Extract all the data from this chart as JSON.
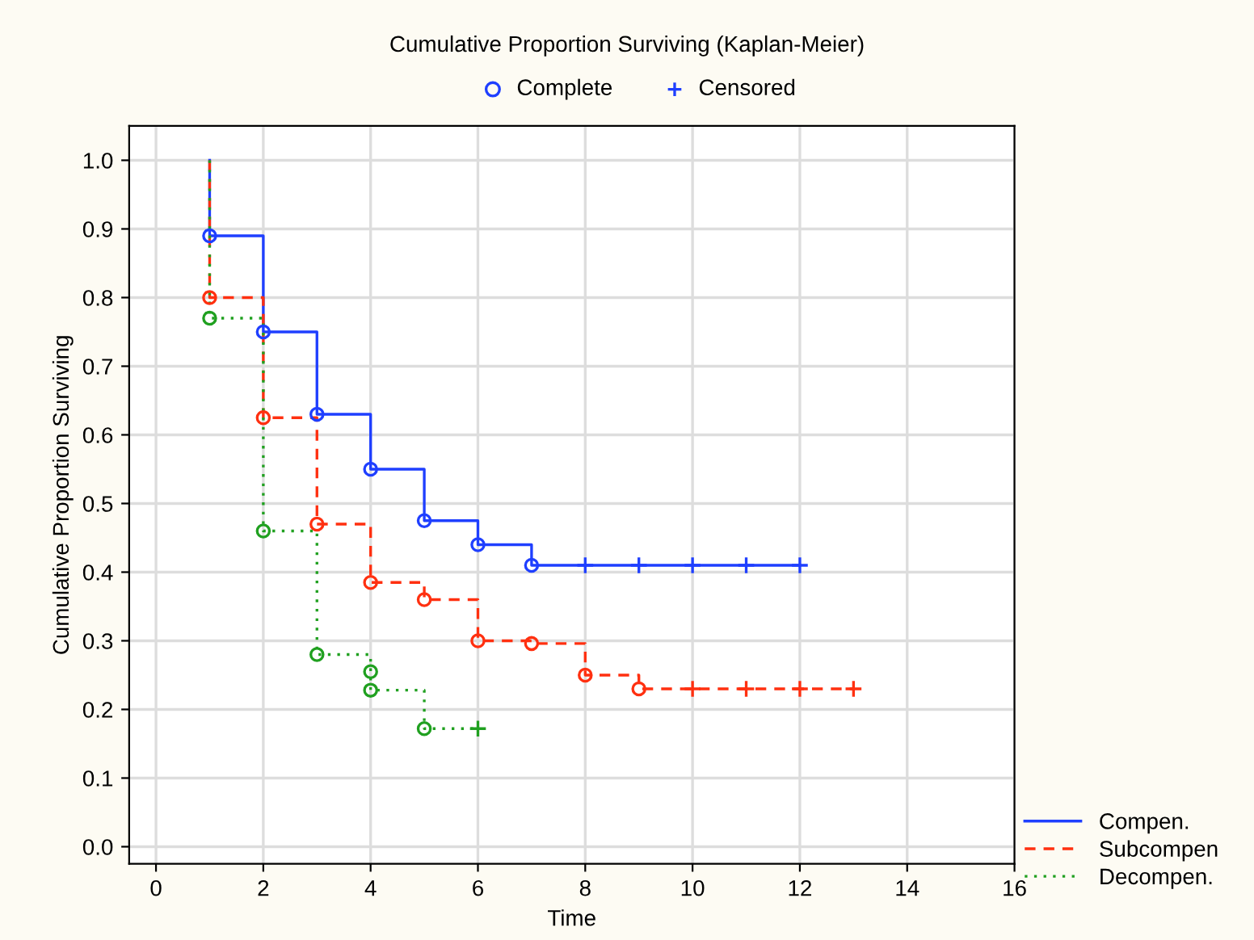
{
  "chart_data": {
    "type": "step",
    "title": "Cumulative Proportion Surviving (Kaplan-Meier)",
    "xlabel": "Time",
    "ylabel": "Cumulative Proportion Surviving",
    "xlim": [
      -0.5,
      16
    ],
    "xticks": [
      0,
      2,
      4,
      6,
      8,
      10,
      12,
      14,
      16
    ],
    "ylim": [
      -0.025,
      1.05
    ],
    "yticks": [
      {
        "value": 0,
        "label": "0.0"
      },
      0.1,
      0.2,
      0.3,
      0.4,
      0.5,
      0.6,
      0.7,
      0.8,
      0.9,
      {
        "value": 1,
        "label": "1.0"
      }
    ],
    "grid": true,
    "legend": "bottom right",
    "annotations": [
      "Complete",
      "Censored"
    ],
    "series": [
      {
        "name": "Compen.",
        "color": "#1f3fff",
        "line_style": "solid",
        "x": [
          1,
          1,
          2,
          3,
          4,
          5,
          6,
          7,
          12
        ],
        "values": [
          1.0,
          0.89,
          0.75,
          0.63,
          0.55,
          0.475,
          0.44,
          0.41,
          0.41
        ]
      },
      {
        "name": "Subcompen",
        "color": "#ff3010",
        "line_style": "dashed",
        "x": [
          1,
          1,
          2,
          3,
          4,
          5,
          6,
          7,
          8,
          9,
          13
        ],
        "values": [
          1.0,
          0.8,
          0.625,
          0.47,
          0.385,
          0.36,
          0.3,
          0.296,
          0.25,
          0.23,
          0.23
        ]
      },
      {
        "name": "Decompen.",
        "color": "#20a020",
        "line_style": "dotted",
        "x": [
          1,
          1,
          2,
          3,
          4,
          4,
          5,
          6
        ],
        "values": [
          1.0,
          0.77,
          0.46,
          0.28,
          0.255,
          0.228,
          0.172,
          0.172
        ]
      },
      {
        "type": "scatter",
        "marker": "circle",
        "color": "#1f3fff",
        "x": [
          1,
          2,
          3,
          4,
          5,
          6,
          7
        ],
        "values": [
          0.89,
          0.75,
          0.63,
          0.55,
          0.475,
          0.44,
          0.41
        ]
      },
      {
        "type": "scatter",
        "marker": "cross",
        "color": "#1f3fff",
        "x": [
          8,
          9,
          10,
          11,
          12
        ],
        "values": [
          0.41,
          0.41,
          0.41,
          0.41,
          0.41
        ]
      },
      {
        "type": "scatter",
        "marker": "circle",
        "color": "#ff3010",
        "x": [
          1,
          2,
          3,
          4,
          5,
          6,
          7,
          8,
          9
        ],
        "values": [
          0.8,
          0.625,
          0.47,
          0.385,
          0.36,
          0.3,
          0.296,
          0.25,
          0.23
        ]
      },
      {
        "type": "scatter",
        "marker": "cross",
        "color": "#ff3010",
        "x": [
          10,
          11,
          12,
          13
        ],
        "values": [
          0.23,
          0.23,
          0.23,
          0.23
        ]
      },
      {
        "type": "scatter",
        "marker": "circle",
        "color": "#20a020",
        "x": [
          1,
          2,
          3,
          4,
          4,
          5
        ],
        "values": [
          0.77,
          0.46,
          0.28,
          0.255,
          0.228,
          0.172
        ]
      },
      {
        "type": "scatter",
        "marker": "cross",
        "color": "#20a020",
        "x": [
          6
        ],
        "values": [
          0.172
        ]
      }
    ]
  }
}
